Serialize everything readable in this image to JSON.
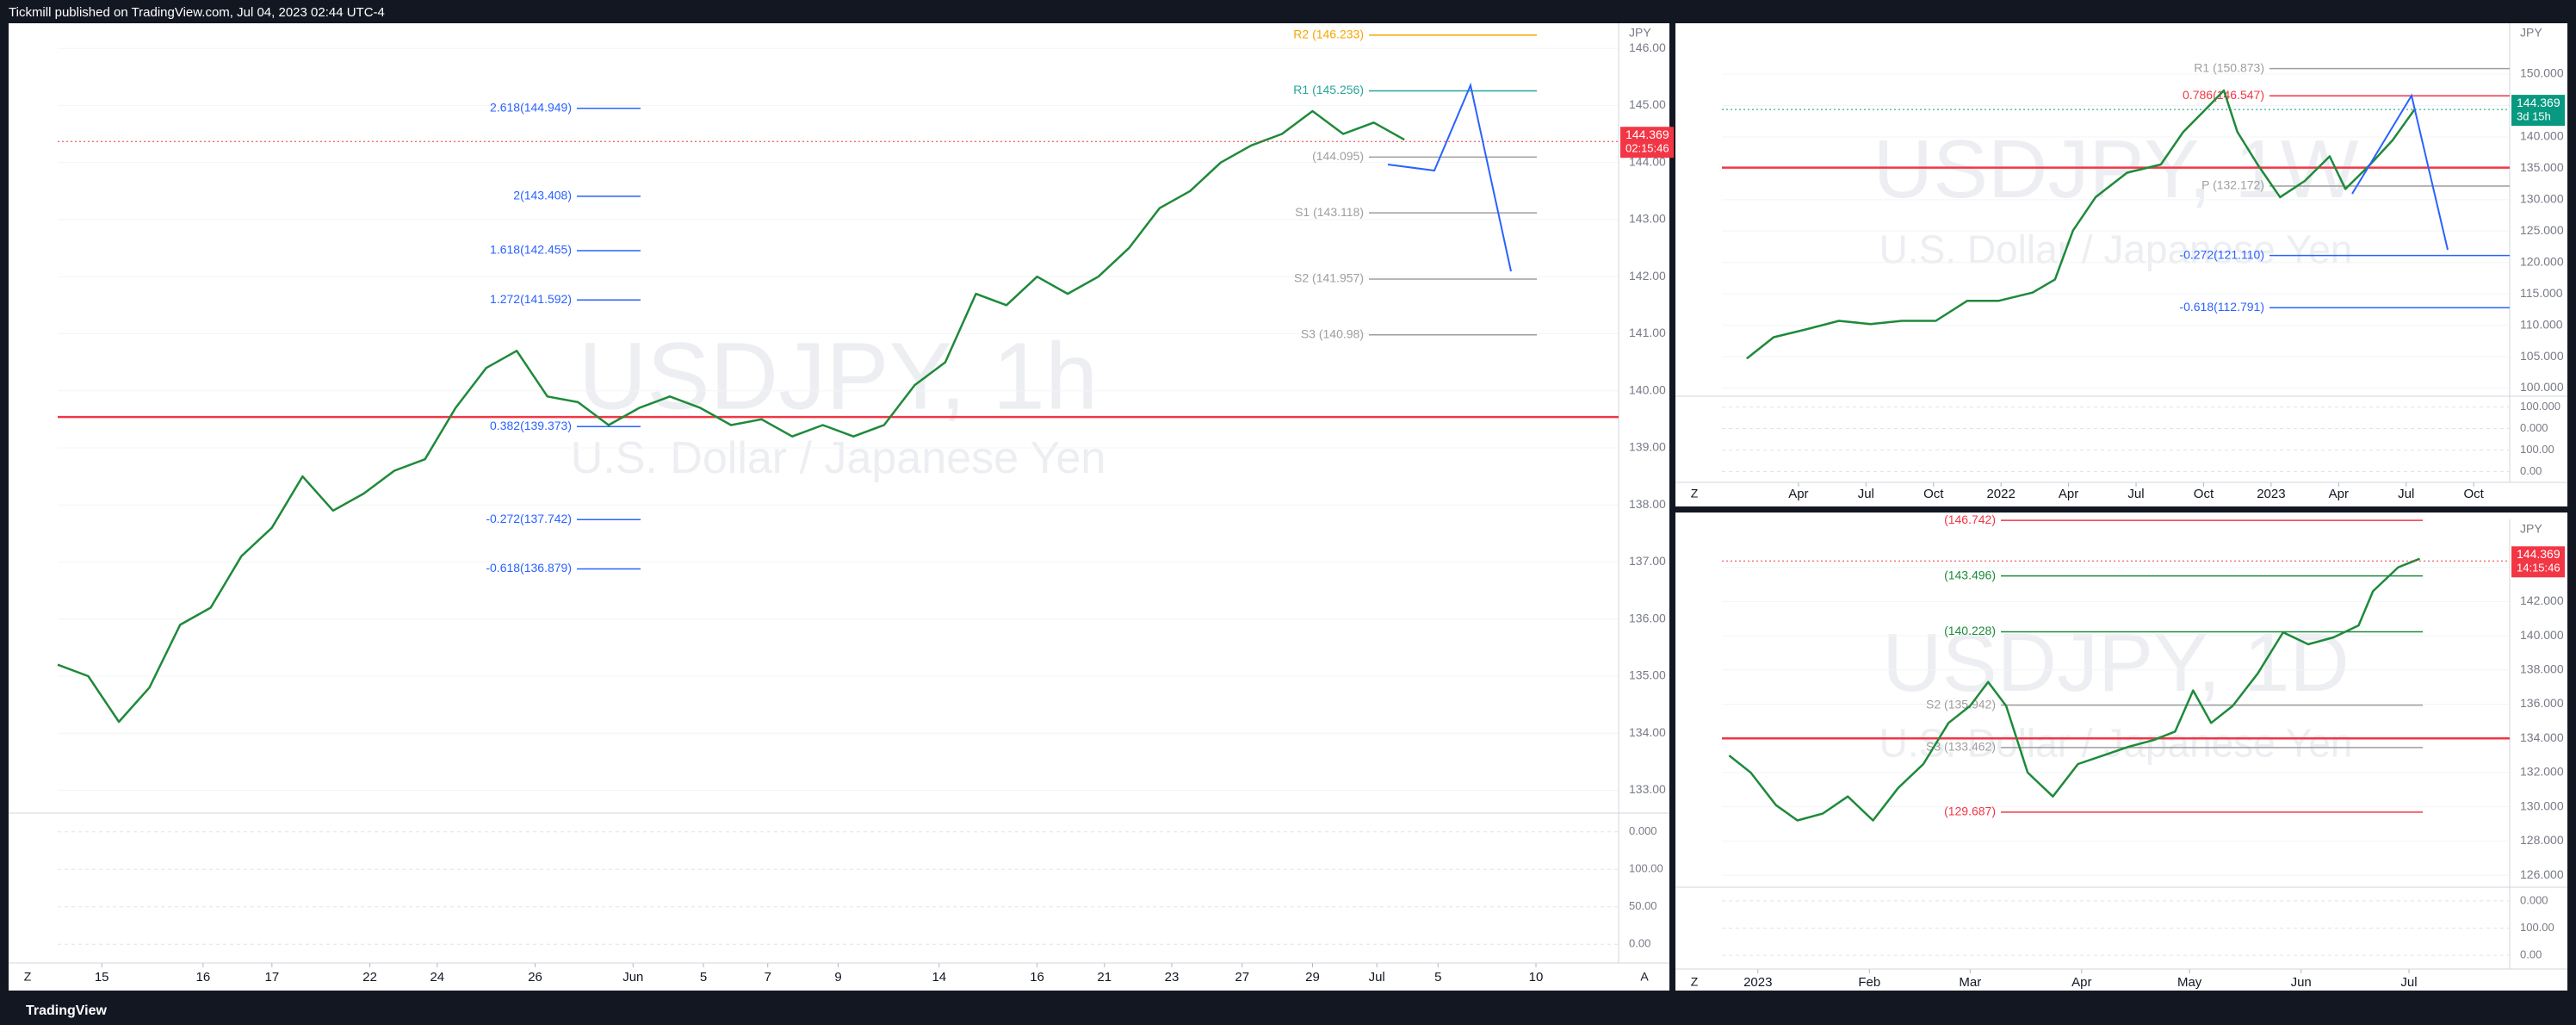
{
  "header": {
    "publisher": "Tickmill published on TradingView.com, Jul 04, 2023 02:44 UTC-4"
  },
  "footer": {
    "brand": "TradingView"
  },
  "chart_data": [
    {
      "type": "line",
      "title": "USDJPY, 1h",
      "subtitle": "U.S. Dollar / Japanese Yen",
      "currency": "JPY",
      "color": "#1e8a3a",
      "values": [
        135.2,
        135.0,
        134.2,
        134.8,
        135.9,
        136.2,
        137.1,
        137.6,
        138.5,
        137.9,
        138.2,
        138.6,
        138.8,
        139.7,
        140.4,
        140.7,
        139.9,
        139.8,
        139.4,
        139.7,
        139.9,
        139.7,
        139.4,
        139.5,
        139.2,
        139.4,
        139.2,
        139.4,
        140.1,
        140.5,
        141.7,
        141.5,
        142.0,
        141.7,
        142.0,
        142.5,
        143.2,
        143.5,
        144.0,
        144.3,
        144.5,
        144.9,
        144.5,
        144.7,
        144.4
      ],
      "xlim": [
        0,
        51
      ],
      "xticks": [
        {
          "value": 1.44,
          "label": "15"
        },
        {
          "value": 4.75,
          "label": "16"
        },
        {
          "value": 7.0,
          "label": "17"
        },
        {
          "value": 10.2,
          "label": "22"
        },
        {
          "value": 12.4,
          "label": "24"
        },
        {
          "value": 15.6,
          "label": "26"
        },
        {
          "value": 18.8,
          "label": "Jun"
        },
        {
          "value": 21.1,
          "label": "5"
        },
        {
          "value": 23.2,
          "label": "7"
        },
        {
          "value": 25.5,
          "label": "9"
        },
        {
          "value": 28.8,
          "label": "14"
        },
        {
          "value": 32.0,
          "label": "16"
        },
        {
          "value": 34.2,
          "label": "21"
        },
        {
          "value": 36.4,
          "label": "23"
        },
        {
          "value": 38.7,
          "label": "27"
        },
        {
          "value": 41.0,
          "label": "29"
        },
        {
          "value": 43.1,
          "label": "Jul"
        },
        {
          "value": 45.1,
          "label": "5"
        },
        {
          "value": 48.3,
          "label": "10"
        }
      ],
      "ylim": [
        132.6,
        146.44
      ],
      "yticks": [
        {
          "value": 133,
          "label": "133.00"
        },
        {
          "value": 134,
          "label": "134.00"
        },
        {
          "value": 135,
          "label": "135.00"
        },
        {
          "value": 136,
          "label": "136.00"
        },
        {
          "value": 137,
          "label": "137.00"
        },
        {
          "value": 138,
          "label": "138.00"
        },
        {
          "value": 139,
          "label": "139.00"
        },
        {
          "value": 140,
          "label": "140.00"
        },
        {
          "value": 141,
          "label": "141.00"
        },
        {
          "value": 142,
          "label": "142.00"
        },
        {
          "value": 143,
          "label": "143.00"
        },
        {
          "value": 144,
          "label": "144.00"
        },
        {
          "value": 145,
          "label": "145.00"
        },
        {
          "value": 146,
          "label": "146.00"
        }
      ],
      "levels": [
        {
          "label": "R2 (146.233)",
          "value": 146.233,
          "color": "#f7a600"
        },
        {
          "label": "R1 (145.256)",
          "value": 145.256,
          "color": "#26a69a"
        },
        {
          "label": "(144.095)",
          "value": 144.095,
          "color": "#9e9e9e"
        },
        {
          "label": "S1 (143.118)",
          "value": 143.118,
          "color": "#9e9e9e"
        },
        {
          "label": "S2 (141.957)",
          "value": 141.957,
          "color": "#9e9e9e"
        },
        {
          "label": "S3 (140.98)",
          "value": 140.98,
          "color": "#9e9e9e"
        }
      ],
      "fib_levels": [
        {
          "label": "2.618(144.949)",
          "value": 144.949,
          "color": "#2962ff"
        },
        {
          "label": "2(143.408)",
          "value": 143.408,
          "color": "#2962ff"
        },
        {
          "label": "1.618(142.455)",
          "value": 142.455,
          "color": "#2962ff"
        },
        {
          "label": "1.272(141.592)",
          "value": 141.592,
          "color": "#2962ff"
        },
        {
          "label": "0.382(139.373)",
          "value": 139.373,
          "color": "#2962ff"
        },
        {
          "label": "-0.272(137.742)",
          "value": 137.742,
          "color": "#2962ff"
        },
        {
          "label": "-0.618(136.879)",
          "value": 136.879,
          "color": "#2962ff"
        }
      ],
      "poc_level": 139.54,
      "last_price": 144.369,
      "last_price_color": "#f23645",
      "countdown": "02:15:46",
      "osc_labels": [
        "0.000",
        "100.00",
        "50.00",
        "0.00"
      ],
      "buttons": [
        "Z",
        "A"
      ]
    },
    {
      "type": "line",
      "title": "USDJPY, 1W",
      "subtitle": "U.S. Dollar / Japanese Yen",
      "currency": "JPY",
      "color": "#1e8a3a",
      "x": [
        0.7,
        1.9,
        3.4,
        4.8,
        6.2,
        7.6,
        9.1,
        10.5,
        11.9,
        13.4,
        14.4,
        15.2,
        16.2,
        17.6,
        19.1,
        20.1,
        21.2,
        21.9,
        22.5,
        23.4,
        24.4,
        25.5,
        26.6,
        27.3,
        28.4,
        29.4,
        30.4
      ],
      "values": [
        104.7,
        108.1,
        109.4,
        110.7,
        110.2,
        110.7,
        110.7,
        113.9,
        113.9,
        115.2,
        117.3,
        125.1,
        130.4,
        134.3,
        135.6,
        140.8,
        144.8,
        147.4,
        140.8,
        135.6,
        130.4,
        133.0,
        136.9,
        131.7,
        135.6,
        139.5,
        144.5
      ],
      "xlim": [
        -0.4,
        34.6
      ],
      "xticks": [
        {
          "value": 3,
          "label": "Apr"
        },
        {
          "value": 6,
          "label": "Jul"
        },
        {
          "value": 9,
          "label": "Oct"
        },
        {
          "value": 12,
          "label": "2022"
        },
        {
          "value": 15,
          "label": "Apr"
        },
        {
          "value": 18,
          "label": "Jul"
        },
        {
          "value": 21,
          "label": "Oct"
        },
        {
          "value": 24,
          "label": "2023"
        },
        {
          "value": 27,
          "label": "Apr"
        },
        {
          "value": 30,
          "label": "Jul"
        },
        {
          "value": 33,
          "label": "Oct"
        }
      ],
      "ylim": [
        98.7,
        158.1
      ],
      "yticks": [
        {
          "value": 100,
          "label": "100.000"
        },
        {
          "value": 105,
          "label": "105.000"
        },
        {
          "value": 110,
          "label": "110.000"
        },
        {
          "value": 115,
          "label": "115.000"
        },
        {
          "value": 120,
          "label": "120.000"
        },
        {
          "value": 125,
          "label": "125.000"
        },
        {
          "value": 130,
          "label": "130.000"
        },
        {
          "value": 135,
          "label": "135.000"
        },
        {
          "value": 140,
          "label": "140.000"
        },
        {
          "value": 145,
          "label": "145.000"
        },
        {
          "value": 150,
          "label": "150.000"
        }
      ],
      "levels": [
        {
          "label": "R1 (150.873)",
          "value": 150.873,
          "color": "#9e9e9e"
        },
        {
          "label": "0.786(146.547)",
          "value": 146.547,
          "color": "#f23645"
        },
        {
          "label": "P (132.172)",
          "value": 132.172,
          "color": "#9e9e9e"
        },
        {
          "label": "-0.272(121.110)",
          "value": 121.11,
          "color": "#2962ff"
        },
        {
          "label": "-0.618(112.791)",
          "value": 112.791,
          "color": "#2962ff"
        }
      ],
      "poc_level": 135.1,
      "last_price": 144.369,
      "last_price_color": "#089981",
      "countdown": "3d 15h",
      "osc_labels": [
        "100.000",
        "0.000",
        "100.00",
        "0.00"
      ],
      "buttons": [
        "Z"
      ]
    },
    {
      "type": "line",
      "title": "USDJPY, 1D",
      "subtitle": "U.S. Dollar / Japanese Yen",
      "currency": "JPY",
      "color": "#1e8a3a",
      "x": [
        -8,
        -2,
        5,
        11,
        18,
        25,
        32,
        39,
        46,
        53,
        59,
        64,
        69,
        75,
        82,
        89,
        96,
        103,
        110,
        116,
        121,
        126,
        132,
        139,
        146,
        153,
        160,
        167,
        171,
        178,
        184
      ],
      "values": [
        133.0,
        132.0,
        130.1,
        129.2,
        129.6,
        130.6,
        129.2,
        131.1,
        132.5,
        134.9,
        135.9,
        137.3,
        135.9,
        132.0,
        130.6,
        132.5,
        133.0,
        133.5,
        133.9,
        134.4,
        136.8,
        134.9,
        135.9,
        137.8,
        140.2,
        139.5,
        139.9,
        140.6,
        142.6,
        144.0,
        144.5
      ],
      "xlim": [
        -10,
        209
      ],
      "xticks": [
        {
          "value": 0,
          "label": "2023"
        },
        {
          "value": 31,
          "label": "Feb"
        },
        {
          "value": 59,
          "label": "Mar"
        },
        {
          "value": 90,
          "label": "Apr"
        },
        {
          "value": 120,
          "label": "May"
        },
        {
          "value": 151,
          "label": "Jun"
        },
        {
          "value": 181,
          "label": "Jul"
        }
      ],
      "ylim": [
        125.3,
        146.8
      ],
      "yticks": [
        {
          "value": 126,
          "label": "126.000"
        },
        {
          "value": 128,
          "label": "128.000"
        },
        {
          "value": 130,
          "label": "130.000"
        },
        {
          "value": 132,
          "label": "132.000"
        },
        {
          "value": 134,
          "label": "134.000"
        },
        {
          "value": 136,
          "label": "136.000"
        },
        {
          "value": 138,
          "label": "138.000"
        },
        {
          "value": 140,
          "label": "140.000"
        },
        {
          "value": 142,
          "label": "142.000"
        },
        {
          "value": 144,
          "label": "144.000"
        }
      ],
      "levels": [
        {
          "label": "(146.742)",
          "value": 146.742,
          "color": "#f23645"
        },
        {
          "label": "(143.496)",
          "value": 143.496,
          "color": "#1e8a3a"
        },
        {
          "label": "(140.228)",
          "value": 140.228,
          "color": "#1e8a3a"
        },
        {
          "label": "S2 (135.942)",
          "value": 135.942,
          "color": "#9e9e9e"
        },
        {
          "label": "S3 (133.462)",
          "value": 133.462,
          "color": "#9e9e9e"
        },
        {
          "label": "(129.687)",
          "value": 129.687,
          "color": "#f23645"
        }
      ],
      "poc_level": 134.0,
      "last_price": 144.369,
      "last_price_color": "#f23645",
      "countdown": "14:15:46",
      "osc_labels": [
        "0.000",
        "100.00",
        "0.00"
      ],
      "buttons": [
        "Z"
      ]
    }
  ]
}
